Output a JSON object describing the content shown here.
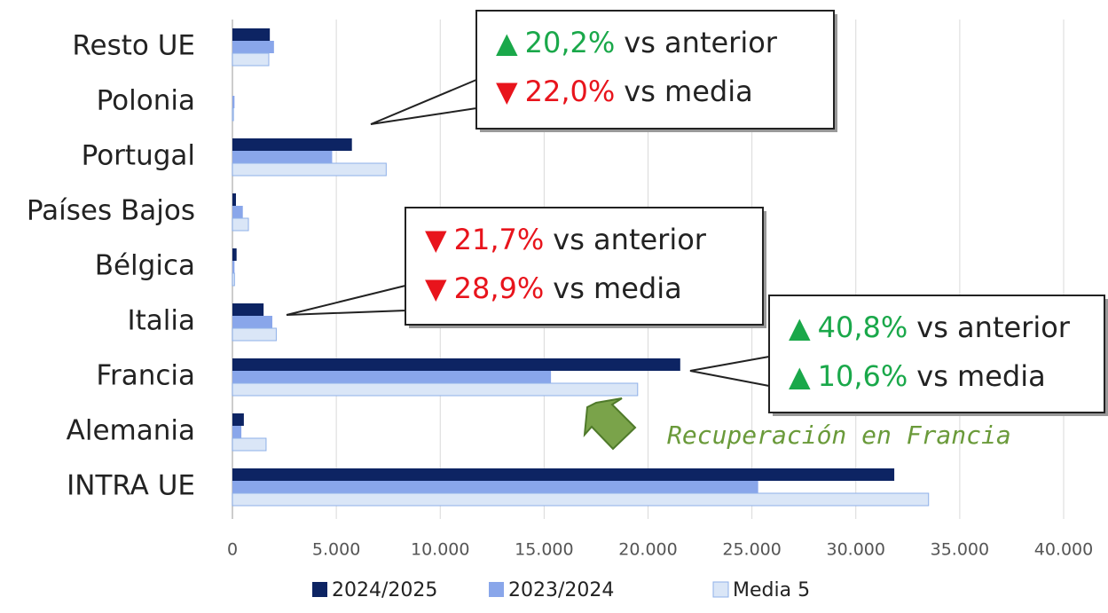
{
  "chart_data": {
    "type": "barh",
    "categories": [
      "Resto UE",
      "Polonia",
      "Portugal",
      "Países Bajos",
      "Bélgica",
      "Italia",
      "Francia",
      "Alemania",
      "INTRA UE"
    ],
    "series": [
      {
        "name": "2024/2025",
        "color": "#0d2463",
        "values": [
          1800,
          0,
          5750,
          170,
          200,
          1500,
          21550,
          550,
          31850
        ]
      },
      {
        "name": "2023/2024",
        "color": "#89a6ea",
        "values": [
          2000,
          100,
          4800,
          500,
          100,
          1920,
          15330,
          430,
          25300
        ]
      },
      {
        "name": "Media 5",
        "color": "#dae6f7",
        "values": [
          1750,
          50,
          7400,
          770,
          100,
          2110,
          19500,
          1620,
          33500
        ]
      }
    ],
    "xlim": [
      0,
      40000
    ],
    "xticks": [
      0,
      {
        "value": 5000,
        "label": "5.000"
      },
      {
        "value": 10000,
        "label": "10.000"
      },
      {
        "value": 15000,
        "label": "15.000"
      },
      {
        "value": 20000,
        "label": "20.000"
      },
      {
        "value": 25000,
        "label": "25.000"
      },
      {
        "value": 30000,
        "label": "30.000"
      },
      {
        "value": 35000,
        "label": "35.000"
      },
      {
        "value": 40000,
        "label": "40.000"
      }
    ],
    "grid": true,
    "legend": "bottom",
    "callouts": [
      {
        "lines": [
          {
            "symbol": "▲",
            "change": "20,2%",
            "text": "vs anterior",
            "color": "#1aa84a"
          },
          {
            "symbol": "▼",
            "change": "22,0%",
            "text": "vs media",
            "color": "#e8141c"
          }
        ]
      },
      {
        "lines": [
          {
            "symbol": "▼",
            "change": "21,7%",
            "text": "vs anterior",
            "color": "#e8141c"
          },
          {
            "symbol": "▼",
            "change": "28,9%",
            "text": "vs media",
            "color": "#e8141c"
          }
        ]
      },
      {
        "lines": [
          {
            "symbol": "▲",
            "change": "40,8%",
            "text": "vs anterior",
            "color": "#1aa84a"
          },
          {
            "symbol": "▲",
            "change": "10,6%",
            "text": "vs media",
            "color": "#1aa84a"
          }
        ]
      }
    ],
    "annotation": {
      "text": "Recuperación en Francia",
      "color": "#6a9a3a"
    }
  }
}
